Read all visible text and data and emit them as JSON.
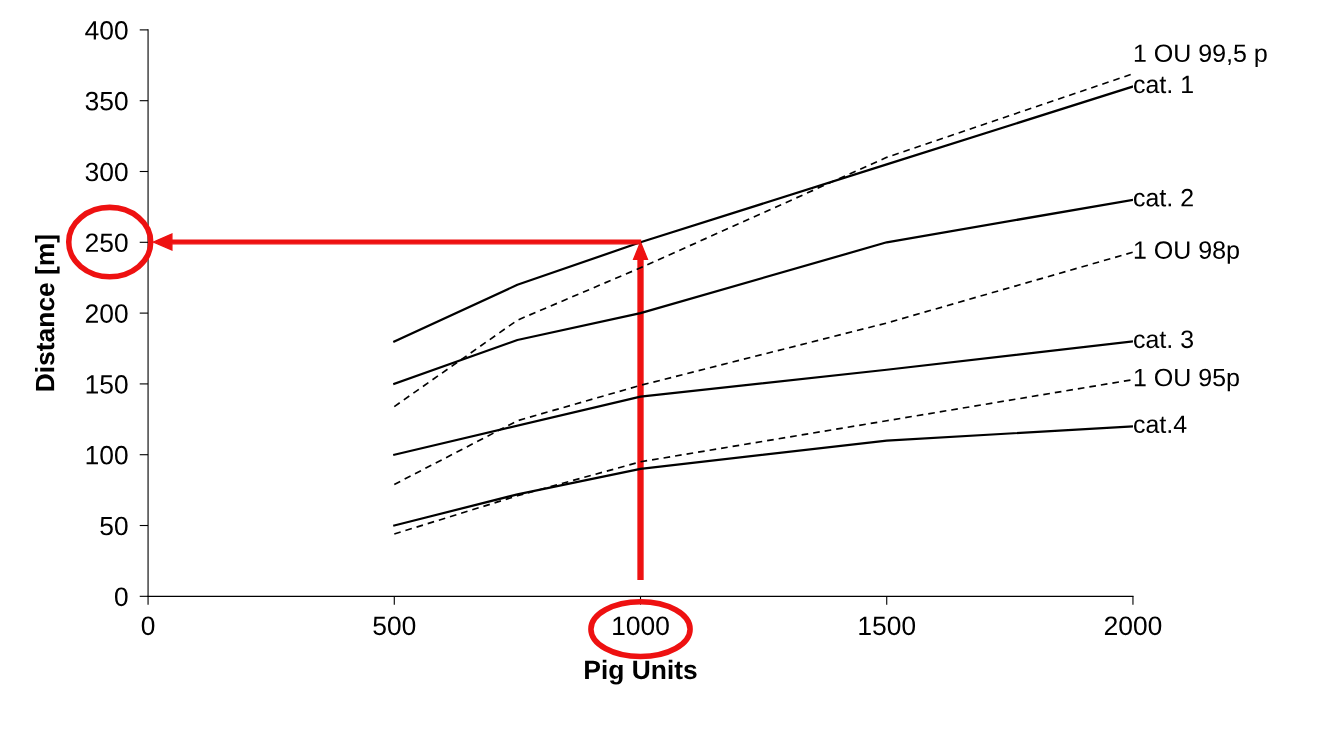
{
  "chart_data": {
    "type": "line",
    "xlabel": "Pig Units",
    "ylabel": "Distance [m]",
    "xlim": [
      0,
      2000
    ],
    "xticks": [
      0,
      500,
      1000,
      1500,
      2000
    ],
    "ylim": [
      0,
      400
    ],
    "yticks": [
      0,
      50,
      100,
      150,
      200,
      250,
      300,
      350,
      400
    ],
    "grid": false,
    "legend": false,
    "marker": "none",
    "series": [
      {
        "name": "cat. 1",
        "color": "#000000",
        "line_style": "solid",
        "x": [
          500,
          750,
          1000,
          1500,
          2000
        ],
        "values": [
          180,
          220,
          250,
          305,
          360
        ]
      },
      {
        "name": "cat. 2",
        "color": "#000000",
        "line_style": "solid",
        "x": [
          500,
          750,
          1000,
          1500,
          2000
        ],
        "values": [
          150,
          181,
          200,
          250,
          280
        ]
      },
      {
        "name": "cat. 3",
        "color": "#000000",
        "line_style": "solid",
        "x": [
          500,
          1000,
          1500,
          2000
        ],
        "values": [
          100,
          141,
          160,
          180
        ]
      },
      {
        "name": "cat.4",
        "color": "#000000",
        "line_style": "solid",
        "x": [
          500,
          750,
          1000,
          1500,
          2000
        ],
        "values": [
          50,
          72,
          90,
          110,
          120
        ]
      },
      {
        "name": "1 OU 99,5 p",
        "color": "#000000",
        "line_style": "dashed",
        "x": [
          500,
          750,
          1000,
          1500,
          2000
        ],
        "values": [
          134,
          195,
          232,
          310,
          369
        ]
      },
      {
        "name": "1 OU 98p",
        "color": "#000000",
        "line_style": "dashed",
        "x": [
          500,
          750,
          1000,
          1500,
          2000
        ],
        "values": [
          79,
          124,
          149,
          193,
          243
        ]
      },
      {
        "name": "1 OU 95p",
        "color": "#000000",
        "line_style": "dashed",
        "x": [
          500,
          750,
          1000,
          1500,
          2000
        ],
        "values": [
          44,
          71,
          95,
          124,
          153
        ]
      }
    ]
  }
}
